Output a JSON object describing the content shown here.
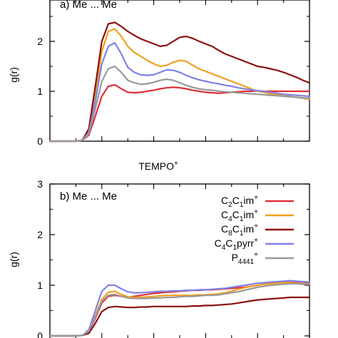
{
  "chart_data": [
    {
      "type": "line",
      "panel_label": "a) Me ... Me",
      "ylabel": "g(r)",
      "xlabel": "",
      "ylim": [
        0,
        3
      ],
      "xlim": [
        0,
        10
      ],
      "yticks": [
        "0",
        "1",
        "2"
      ],
      "x": [
        0,
        0.25,
        0.5,
        0.75,
        1.0,
        1.25,
        1.5,
        1.75,
        2.0,
        2.25,
        2.5,
        2.75,
        3.0,
        3.25,
        3.5,
        3.75,
        4.0,
        4.25,
        4.5,
        4.75,
        5.0,
        5.25,
        5.5,
        5.75,
        6.0,
        6.25,
        6.5,
        6.75,
        7.0,
        7.25,
        7.5,
        7.75,
        8.0,
        8.25,
        8.5,
        8.75,
        9.0,
        9.25,
        9.5,
        9.75,
        10.0
      ],
      "series": [
        {
          "color": "#e0303a",
          "values": [
            0,
            0,
            0,
            0,
            0,
            0.02,
            0.12,
            0.5,
            0.9,
            1.1,
            1.13,
            1.05,
            0.98,
            0.97,
            0.98,
            1.0,
            1.02,
            1.05,
            1.07,
            1.08,
            1.07,
            1.05,
            1.02,
            1.0,
            0.98,
            0.97,
            0.96,
            0.97,
            0.98,
            0.99,
            1.0,
            1.0,
            1.01,
            1.0,
            1.0,
            1.0,
            1.0,
            1.0,
            1.0,
            1.0,
            1.0
          ]
        },
        {
          "color": "#f0a020",
          "values": [
            0,
            0,
            0,
            0,
            0,
            0.02,
            0.2,
            0.9,
            1.8,
            2.2,
            2.25,
            2.1,
            1.9,
            1.78,
            1.7,
            1.62,
            1.55,
            1.5,
            1.52,
            1.58,
            1.62,
            1.6,
            1.52,
            1.45,
            1.4,
            1.35,
            1.3,
            1.25,
            1.2,
            1.15,
            1.1,
            1.05,
            1.0,
            0.98,
            0.95,
            0.93,
            0.91,
            0.9,
            0.88,
            0.86,
            0.84
          ]
        },
        {
          "color": "#8b1010",
          "values": [
            0,
            0,
            0,
            0,
            0,
            0.02,
            0.25,
            1.1,
            2.0,
            2.35,
            2.38,
            2.3,
            2.2,
            2.12,
            2.05,
            2.0,
            1.95,
            1.9,
            1.92,
            2.0,
            2.08,
            2.1,
            2.06,
            2.0,
            1.95,
            1.9,
            1.82,
            1.75,
            1.7,
            1.65,
            1.6,
            1.55,
            1.5,
            1.48,
            1.45,
            1.42,
            1.38,
            1.33,
            1.28,
            1.22,
            1.17
          ]
        },
        {
          "color": "#7f82e8",
          "values": [
            0,
            0,
            0,
            0,
            0,
            0.02,
            0.18,
            0.8,
            1.55,
            1.9,
            1.97,
            1.75,
            1.48,
            1.38,
            1.33,
            1.32,
            1.33,
            1.38,
            1.43,
            1.42,
            1.38,
            1.32,
            1.27,
            1.23,
            1.2,
            1.17,
            1.15,
            1.12,
            1.1,
            1.07,
            1.05,
            1.03,
            1.01,
            1.0,
            0.98,
            0.96,
            0.94,
            0.93,
            0.92,
            0.91,
            0.9
          ]
        },
        {
          "color": "#999999",
          "values": [
            0,
            0,
            0,
            0,
            0,
            0.02,
            0.15,
            0.65,
            1.2,
            1.45,
            1.5,
            1.38,
            1.22,
            1.17,
            1.14,
            1.15,
            1.18,
            1.22,
            1.24,
            1.22,
            1.17,
            1.12,
            1.08,
            1.05,
            1.03,
            1.02,
            1.0,
            0.99,
            0.98,
            0.97,
            0.96,
            0.95,
            0.94,
            0.93,
            0.92,
            0.91,
            0.9,
            0.89,
            0.88,
            0.87,
            0.86
          ]
        }
      ]
    },
    {
      "type": "line",
      "panel_label": "b) Me ... Me",
      "ylabel": "g(r)",
      "xlabel": "",
      "ylim": [
        0,
        3
      ],
      "xlim": [
        0,
        10
      ],
      "yticks": [
        "0",
        "1",
        "2",
        "3"
      ],
      "x": [
        0,
        0.25,
        0.5,
        0.75,
        1.0,
        1.25,
        1.5,
        1.75,
        2.0,
        2.25,
        2.5,
        2.75,
        3.0,
        3.25,
        3.5,
        3.75,
        4.0,
        4.25,
        4.5,
        4.75,
        5.0,
        5.25,
        5.5,
        5.75,
        6.0,
        6.25,
        6.5,
        6.75,
        7.0,
        7.25,
        7.5,
        7.75,
        8.0,
        8.25,
        8.5,
        8.75,
        9.0,
        9.25,
        9.5,
        9.75,
        10.0
      ],
      "series": [
        {
          "color": "#e0303a",
          "values": [
            0,
            0,
            0,
            0,
            0,
            0.01,
            0.08,
            0.35,
            0.65,
            0.78,
            0.8,
            0.78,
            0.76,
            0.78,
            0.8,
            0.82,
            0.84,
            0.85,
            0.86,
            0.87,
            0.88,
            0.89,
            0.9,
            0.9,
            0.91,
            0.91,
            0.92,
            0.93,
            0.94,
            0.95,
            0.96,
            0.98,
            1.0,
            1.02,
            1.04,
            1.06,
            1.07,
            1.08,
            1.07,
            1.06,
            1.05
          ]
        },
        {
          "color": "#f0a020",
          "values": [
            0,
            0,
            0,
            0,
            0,
            0.01,
            0.1,
            0.4,
            0.72,
            0.86,
            0.88,
            0.82,
            0.77,
            0.76,
            0.76,
            0.77,
            0.78,
            0.79,
            0.8,
            0.8,
            0.8,
            0.8,
            0.8,
            0.81,
            0.81,
            0.82,
            0.83,
            0.85,
            0.88,
            0.92,
            0.95,
            0.98,
            1.0,
            1.02,
            1.03,
            1.04,
            1.05,
            1.05,
            1.04,
            1.03,
            1.02
          ]
        },
        {
          "color": "#8b1010",
          "values": [
            0,
            0,
            0,
            0,
            0,
            0.01,
            0.05,
            0.25,
            0.48,
            0.56,
            0.58,
            0.57,
            0.56,
            0.56,
            0.57,
            0.57,
            0.58,
            0.58,
            0.58,
            0.58,
            0.58,
            0.58,
            0.59,
            0.59,
            0.6,
            0.6,
            0.61,
            0.62,
            0.63,
            0.65,
            0.67,
            0.69,
            0.71,
            0.72,
            0.73,
            0.74,
            0.75,
            0.76,
            0.76,
            0.76,
            0.76
          ]
        },
        {
          "color": "#7f82e8",
          "values": [
            0,
            0,
            0,
            0,
            0,
            0.01,
            0.12,
            0.5,
            0.88,
            1.0,
            1.0,
            0.93,
            0.87,
            0.85,
            0.85,
            0.86,
            0.87,
            0.88,
            0.88,
            0.89,
            0.89,
            0.9,
            0.9,
            0.91,
            0.91,
            0.92,
            0.93,
            0.94,
            0.96,
            0.98,
            1.0,
            1.02,
            1.04,
            1.05,
            1.06,
            1.07,
            1.08,
            1.09,
            1.08,
            1.07,
            1.06
          ]
        },
        {
          "color": "#999999",
          "values": [
            0,
            0,
            0,
            0,
            0,
            0.01,
            0.09,
            0.38,
            0.68,
            0.8,
            0.82,
            0.78,
            0.75,
            0.74,
            0.74,
            0.74,
            0.75,
            0.75,
            0.76,
            0.76,
            0.77,
            0.78,
            0.78,
            0.79,
            0.8,
            0.8,
            0.81,
            0.83,
            0.85,
            0.87,
            0.9,
            0.93,
            0.96,
            0.98,
            1.0,
            1.01,
            1.02,
            1.03,
            1.03,
            1.02,
            1.02
          ]
        }
      ]
    }
  ],
  "legend": [
    {
      "base": "C",
      "sub1": "2",
      "mid": "C",
      "sub2": "1",
      "tail": "im",
      "sup": "+",
      "color": "#e0303a"
    },
    {
      "base": "C",
      "sub1": "4",
      "mid": "C",
      "sub2": "1",
      "tail": "im",
      "sup": "+",
      "color": "#f0a020"
    },
    {
      "base": "C",
      "sub1": "8",
      "mid": "C",
      "sub2": "1",
      "tail": "im",
      "sup": "+",
      "color": "#8b1010"
    },
    {
      "base": "C",
      "sub1": "4",
      "mid": "C",
      "sub2": "1",
      "tail": "pyrr",
      "sup": "+",
      "color": "#7f82e8"
    },
    {
      "base": "P",
      "sub1": "4441",
      "mid": "",
      "sub2": "",
      "tail": "",
      "sup": "+",
      "color": "#999999"
    }
  ],
  "center_label": {
    "text": "TEMPO",
    "sup": "+"
  }
}
